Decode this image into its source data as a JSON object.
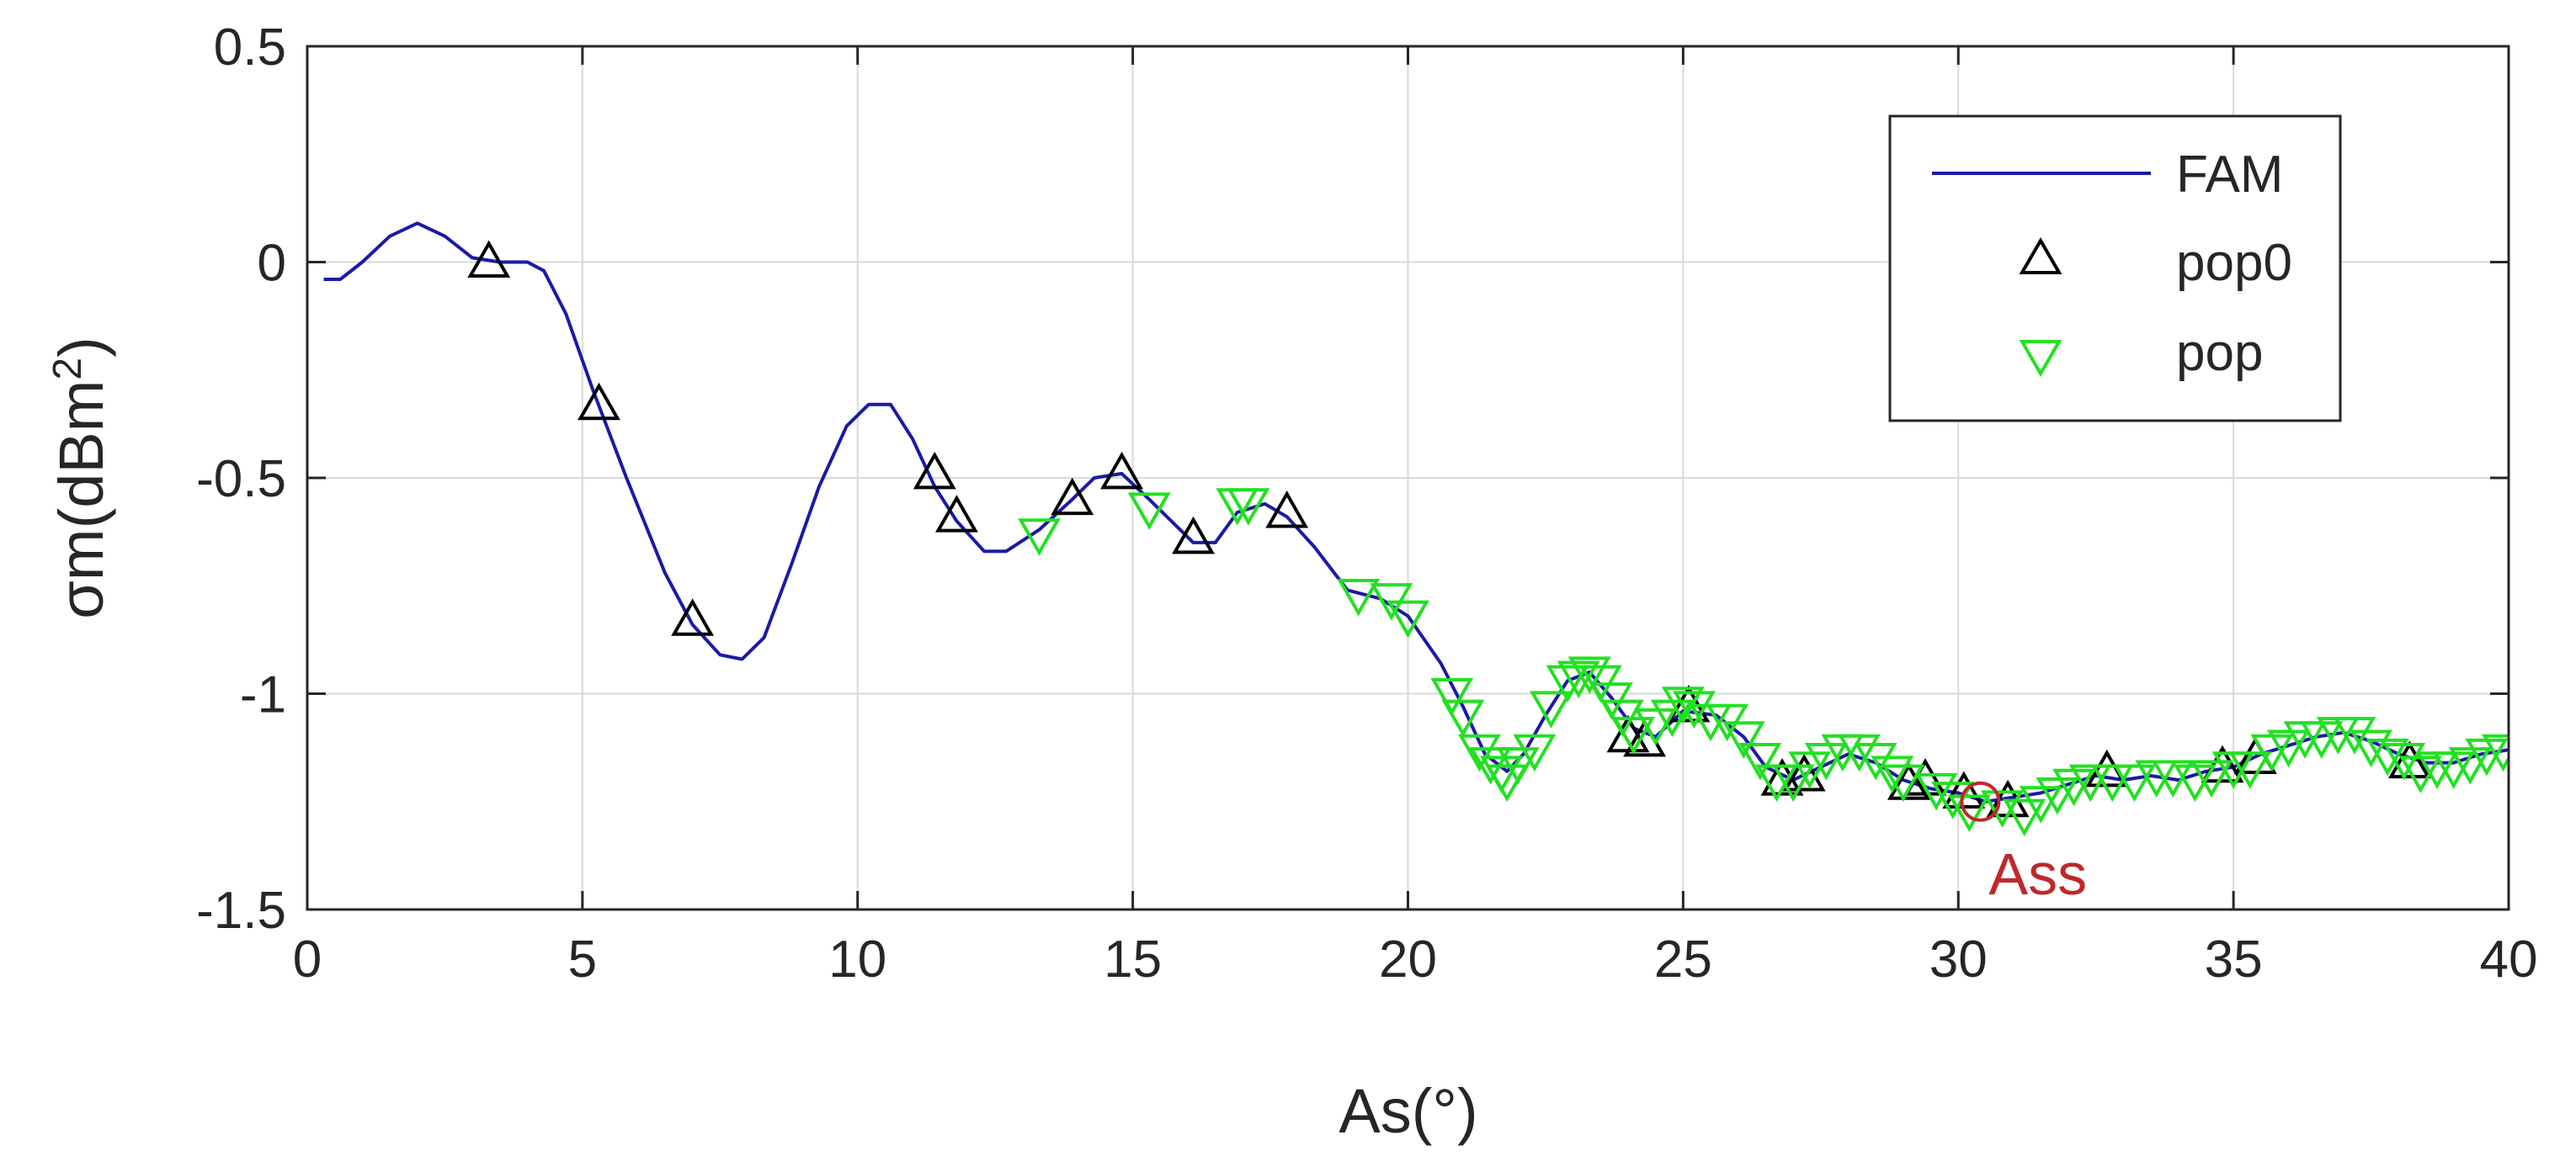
{
  "chart_data": {
    "type": "line",
    "xlabel": "As(°)",
    "ylabel_prefix": "σm(dBm",
    "ylabel_sup": "2",
    "ylabel_suffix": ")",
    "xlim": [
      0,
      40
    ],
    "ylim": [
      -1.5,
      0.5
    ],
    "xticks": [
      0,
      5,
      10,
      15,
      20,
      25,
      30,
      35,
      40
    ],
    "xtick_labels": [
      "0",
      "5",
      "10",
      "15",
      "20",
      "25",
      "30",
      "35",
      "40"
    ],
    "yticks": [
      0.5,
      0,
      -0.5,
      -1,
      -1.5
    ],
    "ytick_labels": [
      "0.5",
      "0",
      "-0.5",
      "-1",
      "-1.5"
    ],
    "grid": true,
    "legend_position": "top-right",
    "legend": [
      {
        "label": "FAM",
        "marker": "line",
        "color": "#1a1aa8"
      },
      {
        "label": "pop0",
        "marker": "triangle-up",
        "color": "#000000"
      },
      {
        "label": "pop",
        "marker": "triangle-down",
        "color": "#22e022"
      }
    ],
    "series": [
      {
        "name": "FAM",
        "color": "#1a1aa8",
        "points": [
          [
            0.3,
            -0.04
          ],
          [
            0.6,
            -0.04
          ],
          [
            1,
            0.0
          ],
          [
            1.5,
            0.06
          ],
          [
            2,
            0.09
          ],
          [
            2.5,
            0.06
          ],
          [
            3,
            0.01
          ],
          [
            3.5,
            0.0
          ],
          [
            4,
            0.0
          ],
          [
            4.3,
            -0.02
          ],
          [
            4.7,
            -0.12
          ],
          [
            5.2,
            -0.3
          ],
          [
            5.8,
            -0.5
          ],
          [
            6.5,
            -0.72
          ],
          [
            7,
            -0.84
          ],
          [
            7.5,
            -0.91
          ],
          [
            7.9,
            -0.92
          ],
          [
            8.3,
            -0.87
          ],
          [
            8.8,
            -0.7
          ],
          [
            9.3,
            -0.52
          ],
          [
            9.8,
            -0.38
          ],
          [
            10.2,
            -0.33
          ],
          [
            10.6,
            -0.33
          ],
          [
            11,
            -0.41
          ],
          [
            11.4,
            -0.52
          ],
          [
            11.8,
            -0.6
          ],
          [
            12.3,
            -0.67
          ],
          [
            12.7,
            -0.67
          ],
          [
            13.3,
            -0.62
          ],
          [
            13.9,
            -0.55
          ],
          [
            14.3,
            -0.5
          ],
          [
            14.8,
            -0.49
          ],
          [
            15.3,
            -0.55
          ],
          [
            15.7,
            -0.6
          ],
          [
            16.1,
            -0.65
          ],
          [
            16.5,
            -0.65
          ],
          [
            16.9,
            -0.58
          ],
          [
            17.4,
            -0.56
          ],
          [
            17.8,
            -0.59
          ],
          [
            18.3,
            -0.66
          ],
          [
            18.9,
            -0.76
          ],
          [
            19.5,
            -0.78
          ],
          [
            20,
            -0.82
          ],
          [
            20.6,
            -0.93
          ],
          [
            21,
            -1.03
          ],
          [
            21.4,
            -1.14
          ],
          [
            21.8,
            -1.18
          ],
          [
            22.1,
            -1.14
          ],
          [
            22.5,
            -1.05
          ],
          [
            22.9,
            -0.97
          ],
          [
            23.3,
            -0.95
          ],
          [
            23.7,
            -1.01
          ],
          [
            24.1,
            -1.08
          ],
          [
            24.5,
            -1.1
          ],
          [
            25,
            -1.04
          ],
          [
            25.6,
            -1.05
          ],
          [
            26.1,
            -1.1
          ],
          [
            26.5,
            -1.17
          ],
          [
            27,
            -1.2
          ],
          [
            27.5,
            -1.17
          ],
          [
            28,
            -1.14
          ],
          [
            28.5,
            -1.16
          ],
          [
            29,
            -1.2
          ],
          [
            29.5,
            -1.22
          ],
          [
            30,
            -1.23
          ],
          [
            30.5,
            -1.25
          ],
          [
            31,
            -1.24
          ],
          [
            31.5,
            -1.23
          ],
          [
            32,
            -1.21
          ],
          [
            32.5,
            -1.19
          ],
          [
            33,
            -1.2
          ],
          [
            33.5,
            -1.19
          ],
          [
            34,
            -1.2
          ],
          [
            34.5,
            -1.18
          ],
          [
            35,
            -1.17
          ],
          [
            35.5,
            -1.14
          ],
          [
            36,
            -1.12
          ],
          [
            36.5,
            -1.1
          ],
          [
            37,
            -1.09
          ],
          [
            37.5,
            -1.11
          ],
          [
            38,
            -1.14
          ],
          [
            38.5,
            -1.16
          ],
          [
            39,
            -1.16
          ],
          [
            39.5,
            -1.14
          ],
          [
            40,
            -1.13
          ]
        ]
      },
      {
        "name": "pop0",
        "color": "#000000",
        "points": [
          [
            3.3,
            0.0
          ],
          [
            5.3,
            -0.33
          ],
          [
            7.0,
            -0.83
          ],
          [
            11.4,
            -0.49
          ],
          [
            11.8,
            -0.59
          ],
          [
            13.9,
            -0.55
          ],
          [
            14.8,
            -0.49
          ],
          [
            16.1,
            -0.64
          ],
          [
            17.8,
            -0.58
          ],
          [
            24.0,
            -1.1
          ],
          [
            24.3,
            -1.11
          ],
          [
            25.1,
            -1.03
          ],
          [
            26.8,
            -1.2
          ],
          [
            27.2,
            -1.19
          ],
          [
            29.1,
            -1.21
          ],
          [
            29.4,
            -1.2
          ],
          [
            30.1,
            -1.23
          ],
          [
            30.9,
            -1.25
          ],
          [
            32.7,
            -1.18
          ],
          [
            34.8,
            -1.17
          ],
          [
            35.4,
            -1.15
          ],
          [
            38.2,
            -1.16
          ]
        ]
      },
      {
        "name": "pop",
        "color": "#22e022",
        "points": [
          [
            13.3,
            -0.63
          ],
          [
            15.3,
            -0.57
          ],
          [
            16.9,
            -0.56
          ],
          [
            17.1,
            -0.56
          ],
          [
            19.1,
            -0.77
          ],
          [
            19.7,
            -0.78
          ],
          [
            20.0,
            -0.82
          ],
          [
            20.8,
            -1.0
          ],
          [
            21.0,
            -1.05
          ],
          [
            21.3,
            -1.13
          ],
          [
            21.5,
            -1.16
          ],
          [
            21.7,
            -1.18
          ],
          [
            21.8,
            -1.2
          ],
          [
            22.0,
            -1.16
          ],
          [
            22.3,
            -1.13
          ],
          [
            22.6,
            -1.03
          ],
          [
            22.9,
            -0.97
          ],
          [
            23.1,
            -0.96
          ],
          [
            23.3,
            -0.95
          ],
          [
            23.5,
            -0.97
          ],
          [
            23.7,
            -1.01
          ],
          [
            23.9,
            -1.05
          ],
          [
            24.1,
            -1.09
          ],
          [
            24.5,
            -1.07
          ],
          [
            24.8,
            -1.05
          ],
          [
            25.0,
            -1.02
          ],
          [
            25.2,
            -1.03
          ],
          [
            25.5,
            -1.06
          ],
          [
            25.8,
            -1.06
          ],
          [
            26.1,
            -1.1
          ],
          [
            26.4,
            -1.15
          ],
          [
            26.7,
            -1.2
          ],
          [
            27.0,
            -1.2
          ],
          [
            27.3,
            -1.17
          ],
          [
            27.6,
            -1.15
          ],
          [
            27.9,
            -1.13
          ],
          [
            28.2,
            -1.13
          ],
          [
            28.5,
            -1.15
          ],
          [
            28.8,
            -1.18
          ],
          [
            29.0,
            -1.2
          ],
          [
            29.6,
            -1.22
          ],
          [
            29.9,
            -1.24
          ],
          [
            30.2,
            -1.27
          ],
          [
            30.8,
            -1.26
          ],
          [
            31.2,
            -1.28
          ],
          [
            31.5,
            -1.25
          ],
          [
            31.8,
            -1.23
          ],
          [
            32.1,
            -1.21
          ],
          [
            32.4,
            -1.2
          ],
          [
            32.8,
            -1.2
          ],
          [
            33.2,
            -1.2
          ],
          [
            33.6,
            -1.19
          ],
          [
            33.9,
            -1.19
          ],
          [
            34.3,
            -1.2
          ],
          [
            34.6,
            -1.19
          ],
          [
            35.0,
            -1.17
          ],
          [
            35.3,
            -1.17
          ],
          [
            35.7,
            -1.13
          ],
          [
            36.0,
            -1.12
          ],
          [
            36.3,
            -1.1
          ],
          [
            36.6,
            -1.1
          ],
          [
            36.9,
            -1.09
          ],
          [
            37.2,
            -1.09
          ],
          [
            37.5,
            -1.12
          ],
          [
            37.8,
            -1.14
          ],
          [
            38.1,
            -1.15
          ],
          [
            38.4,
            -1.18
          ],
          [
            38.7,
            -1.17
          ],
          [
            39.0,
            -1.17
          ],
          [
            39.3,
            -1.16
          ],
          [
            39.6,
            -1.14
          ],
          [
            39.9,
            -1.13
          ]
        ]
      }
    ],
    "annotation": {
      "label": "Ass",
      "x": 30.4,
      "y": -1.25,
      "color": "#c0282a"
    }
  }
}
